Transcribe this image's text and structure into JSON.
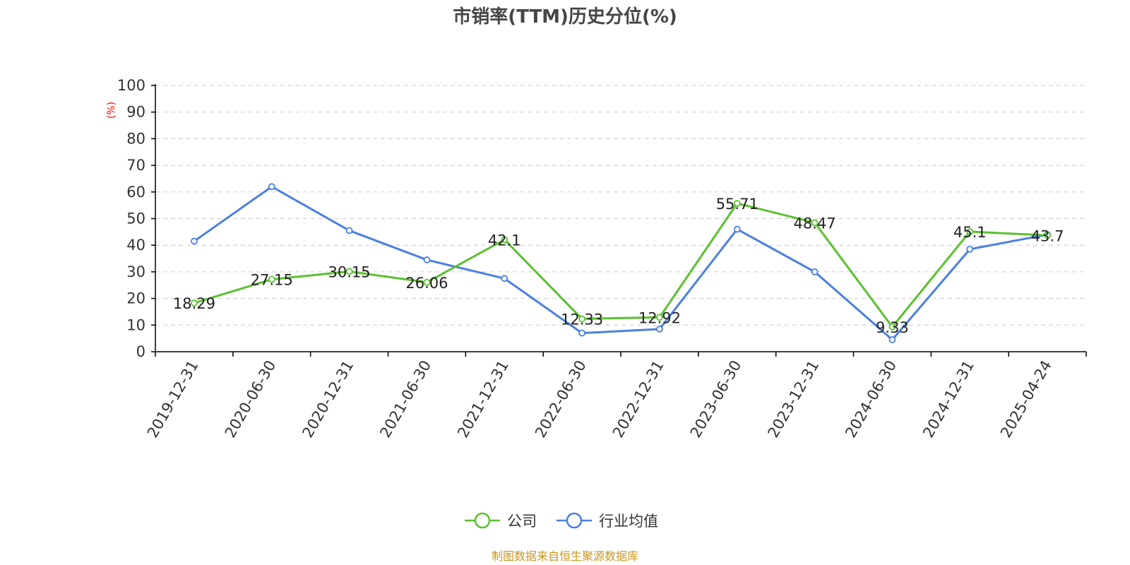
{
  "chart_data": {
    "type": "line",
    "title": "市销率(TTM)历史分位(%)",
    "ylabel": "(%)",
    "xlabel": "",
    "ylim": [
      0,
      100
    ],
    "yticks": [
      0,
      10,
      20,
      30,
      40,
      50,
      60,
      70,
      80,
      90,
      100
    ],
    "grid": true,
    "legend_position": "bottom-center",
    "categories": [
      "2019-12-31",
      "2020-06-30",
      "2020-12-31",
      "2021-06-30",
      "2021-12-31",
      "2022-06-30",
      "2022-12-31",
      "2023-06-30",
      "2023-12-31",
      "2024-06-30",
      "2024-12-31",
      "2025-04-24"
    ],
    "series": [
      {
        "name": "公司",
        "color": "#5ac12e",
        "values": [
          18.29,
          27.15,
          30.15,
          26.06,
          42.1,
          12.33,
          12.92,
          55.71,
          48.47,
          9.33,
          45.1,
          43.7
        ],
        "labels": [
          "18.29",
          "27.15",
          "30.15",
          "26.06",
          "42.1",
          "12.33",
          "12.92",
          "55.71",
          "48.47",
          "9.33",
          "45.1",
          "43.7"
        ]
      },
      {
        "name": "行业均值",
        "color": "#4a80e0",
        "values": [
          41.5,
          62.0,
          45.5,
          34.5,
          27.5,
          7.0,
          8.5,
          46.0,
          30.0,
          4.5,
          38.5,
          44.0
        ]
      }
    ],
    "source": "制图数据来自恒生聚源数据库"
  }
}
